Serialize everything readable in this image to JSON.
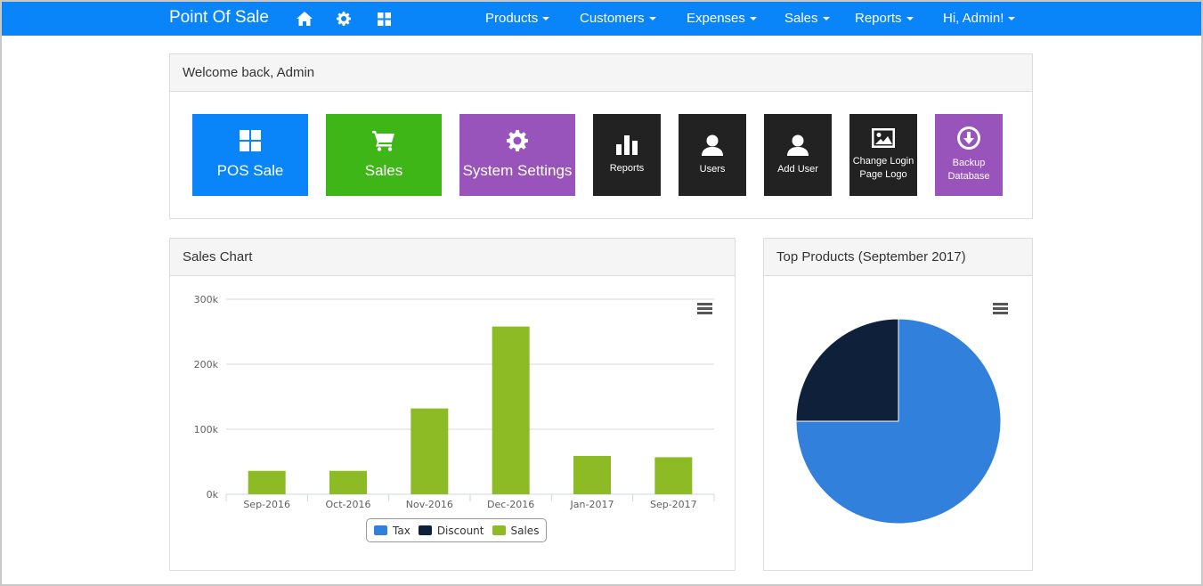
{
  "navbar": {
    "brand": "Point Of Sale",
    "icons": [
      "home-icon",
      "gear-icon",
      "grid-icon"
    ],
    "menu": {
      "products": "Products",
      "customers": "Customers",
      "expenses": "Expenses",
      "sales": "Sales",
      "reports": "Reports",
      "user": "Hi, Admin!"
    },
    "color": "#0a84f9"
  },
  "welcome": {
    "title": "Welcome back, Admin",
    "tiles": [
      {
        "label": "POS Sale",
        "icon": "grid-icon",
        "color": "#0a84f9"
      },
      {
        "label": "Sales",
        "icon": "cart-icon",
        "color": "#3fb618"
      },
      {
        "label": "System Settings",
        "icon": "gear-icon",
        "color": "#9954bb"
      },
      {
        "label": "Reports",
        "icon": "bar-chart-icon",
        "color": "#222222"
      },
      {
        "label": "Users",
        "icon": "user-icon",
        "color": "#222222"
      },
      {
        "label": "Add User",
        "icon": "user-icon",
        "color": "#222222"
      },
      {
        "label": "Change Login Page Logo",
        "icon": "picture-icon",
        "color": "#222222"
      },
      {
        "label": "Backup Database",
        "icon": "download-icon",
        "color": "#9954bb"
      }
    ]
  },
  "sales_chart": {
    "title": "Sales Chart"
  },
  "top_products": {
    "title": "Top Products (September 2017)"
  },
  "chart_data": [
    {
      "type": "bar",
      "categories": [
        "Sep-2016",
        "Oct-2016",
        "Nov-2016",
        "Dec-2016",
        "Jan-2017",
        "Sep-2017"
      ],
      "series": [
        {
          "name": "Tax",
          "color": "#3180dc",
          "values": [
            0,
            0,
            0,
            0,
            0,
            0
          ]
        },
        {
          "name": "Discount",
          "color": "#0f203a",
          "values": [
            0,
            0,
            0,
            0,
            0,
            0
          ]
        },
        {
          "name": "Sales",
          "color": "#8cbb26",
          "values": [
            36000,
            36000,
            132000,
            258000,
            59000,
            57000
          ]
        }
      ],
      "ylim": [
        0,
        300000
      ],
      "yticks": [
        "0k",
        "100k",
        "200k",
        "300k"
      ],
      "ytick_values": [
        0,
        100000,
        200000,
        300000
      ],
      "grid": true,
      "legend": "bottom-center"
    },
    {
      "type": "pie",
      "labels": [
        "",
        ""
      ],
      "values": [
        75,
        25
      ],
      "colors": [
        "#3180dc",
        "#0f203a"
      ]
    }
  ]
}
